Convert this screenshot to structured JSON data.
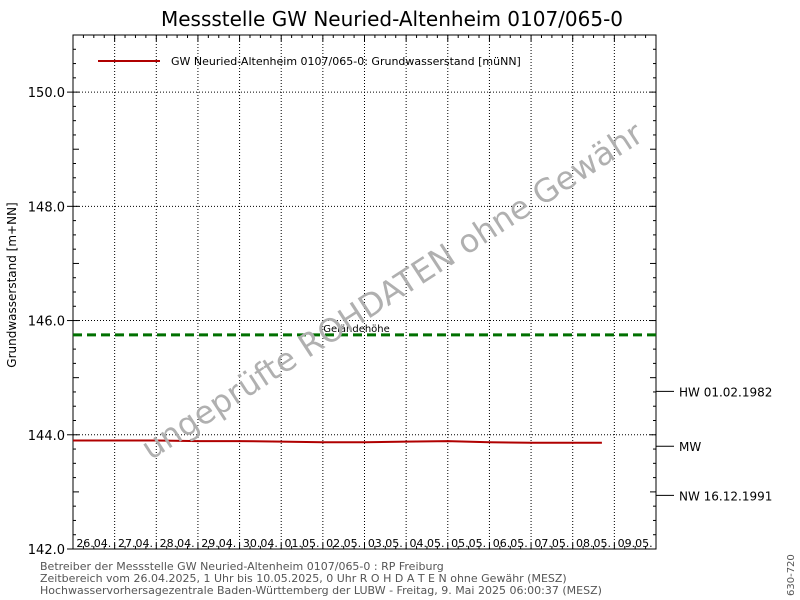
{
  "colors": {
    "series": "#b00000",
    "gelaendehoehe": "#007000",
    "grid": "#000000",
    "watermark": "#b0b0b0"
  },
  "footer": {
    "line1": "Betreiber der Messstelle GW Neuried-Altenheim 0107/065-0 : RP Freiburg",
    "line2": "Zeitbereich vom 26.04.2025, 1 Uhr bis 10.05.2025, 0 Uhr   R O H D A T E N ohne Gewähr (MESZ)",
    "line3": "Hochwasservorhersagezentrale Baden-Württemberg der LUBW - Freitag, 9. Mai 2025 06:00:37 (MESZ)"
  },
  "side_code": "630-720",
  "chart_data": {
    "type": "line",
    "title": "Messstelle GW Neuried-Altenheim 0107/065-0",
    "ylabel": "Grundwasserstand [m+NN]",
    "ylim": [
      142.0,
      151.0
    ],
    "yticks": [
      "142.0",
      "144.0",
      "146.0",
      "148.0",
      "150.0"
    ],
    "ytick_values": [
      142.0,
      144.0,
      146.0,
      148.0,
      150.0
    ],
    "x_range_days": [
      0,
      14.0
    ],
    "x_tick_labels": [
      "26.04.",
      "27.04.",
      "28.04.",
      "29.04.",
      "30.04.",
      "01.05.",
      "02.05.",
      "03.05.",
      "04.05.",
      "05.05.",
      "06.05.",
      "07.05.",
      "08.05.",
      "09.05."
    ],
    "grid": true,
    "legend": "top-left",
    "series": [
      {
        "name": "GW Neuried-Altenheim 0107/065-0: Grundwasserstand  [müNN]",
        "x": [
          "26.04.",
          "27.04.",
          "28.04.",
          "29.04.",
          "30.04.",
          "01.05.",
          "02.05.",
          "03.05.",
          "04.05.",
          "05.05.",
          "06.05.",
          "07.05.",
          "08.05.",
          "08.05."
        ],
        "x_days": [
          0,
          1,
          2,
          3,
          4,
          5,
          6,
          7,
          8,
          9,
          10,
          11,
          12,
          12.7
        ],
        "values": [
          143.9,
          143.9,
          143.9,
          143.89,
          143.89,
          143.88,
          143.87,
          143.87,
          143.88,
          143.89,
          143.87,
          143.86,
          143.86,
          143.86
        ]
      }
    ],
    "reference_lines": [
      {
        "label": "Geländehöhe",
        "value": 145.75,
        "style": "dashed"
      }
    ],
    "right_markers": [
      {
        "label": "HW 01.02.1982",
        "value": 144.76
      },
      {
        "label": "MW",
        "value": 143.8
      },
      {
        "label": "NW 16.12.1991",
        "value": 142.94
      }
    ],
    "watermark": "ungeprüfte ROHDATEN ohne Gewähr"
  }
}
